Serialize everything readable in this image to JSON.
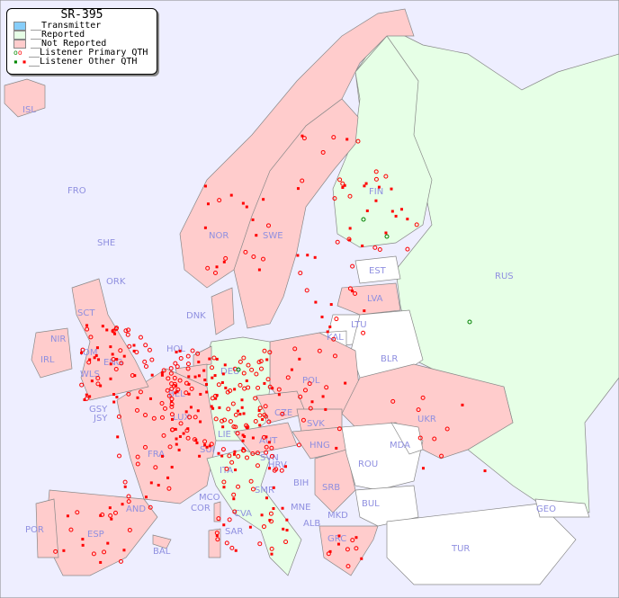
{
  "legend": {
    "title": "SR-395",
    "items": [
      {
        "label": "__Transmitter",
        "color": "#87cefa"
      },
      {
        "label": "__Reported",
        "color": "#e6ffe6"
      },
      {
        "label": "__Not Reported",
        "color": "#ffcccc"
      },
      {
        "label": "__Listener Primary QTH",
        "symbol": "circle"
      },
      {
        "label": "__Listener Other QTH",
        "symbol": "square"
      }
    ]
  },
  "colors": {
    "sea": "#eeeeff",
    "reported": "#e6ffe6",
    "not_reported": "#ffcccc",
    "no_data": "#ffffff",
    "listener": "#ff0000",
    "listener_reported": "#008000",
    "label": "#8f8fe0"
  },
  "countries": {
    "reported": [
      "FIN",
      "RUS",
      "DEU",
      "ITA"
    ],
    "not_reported": [
      "ISL",
      "NOR",
      "SWE",
      "LVA",
      "DNK",
      "HOL",
      "BEL",
      "POL",
      "IRL",
      "IOM",
      "WLS",
      "ENG",
      "SCT",
      "NIR",
      "GSY",
      "JSY",
      "LUX",
      "FRA",
      "SUI",
      "LIE",
      "AUT",
      "CZE",
      "SVK",
      "HNG",
      "UKR",
      "SRB",
      "BIH",
      "HRV",
      "SVN",
      "MCO",
      "COR",
      "SAR",
      "CVA",
      "SMR",
      "AND",
      "ESP",
      "POR",
      "BAL",
      "MNE",
      "ALB",
      "MKD",
      "GRC"
    ],
    "no_data": [
      "FRO",
      "SHE",
      "ORK",
      "EST",
      "LTU",
      "KAL",
      "BLR",
      "MDA",
      "ROU",
      "BUL",
      "TUR",
      "GEO"
    ]
  },
  "labels": [
    "ISL",
    "FRO",
    "SHE",
    "ORK",
    "NOR",
    "SWE",
    "FIN",
    "RUS",
    "EST",
    "LVA",
    "LTU",
    "KAL",
    "BLR",
    "DNK",
    "HOL",
    "BEL",
    "DEU",
    "POL",
    "IRL",
    "IOM",
    "WLS",
    "ENG",
    "SCT",
    "NIR",
    "GSY",
    "JSY",
    "LUX",
    "FRA",
    "SUI",
    "LIE",
    "AUT",
    "CZE",
    "SVK",
    "HNG",
    "UKR",
    "MDA",
    "ROU",
    "SRB",
    "BIH",
    "HRV",
    "SVN",
    "ITA",
    "MCO",
    "COR",
    "SAR",
    "CVA",
    "SMR",
    "AND",
    "ESP",
    "POR",
    "BAL",
    "MNE",
    "ALB",
    "MKD",
    "BUL",
    "GRC",
    "TUR",
    "GEO"
  ]
}
